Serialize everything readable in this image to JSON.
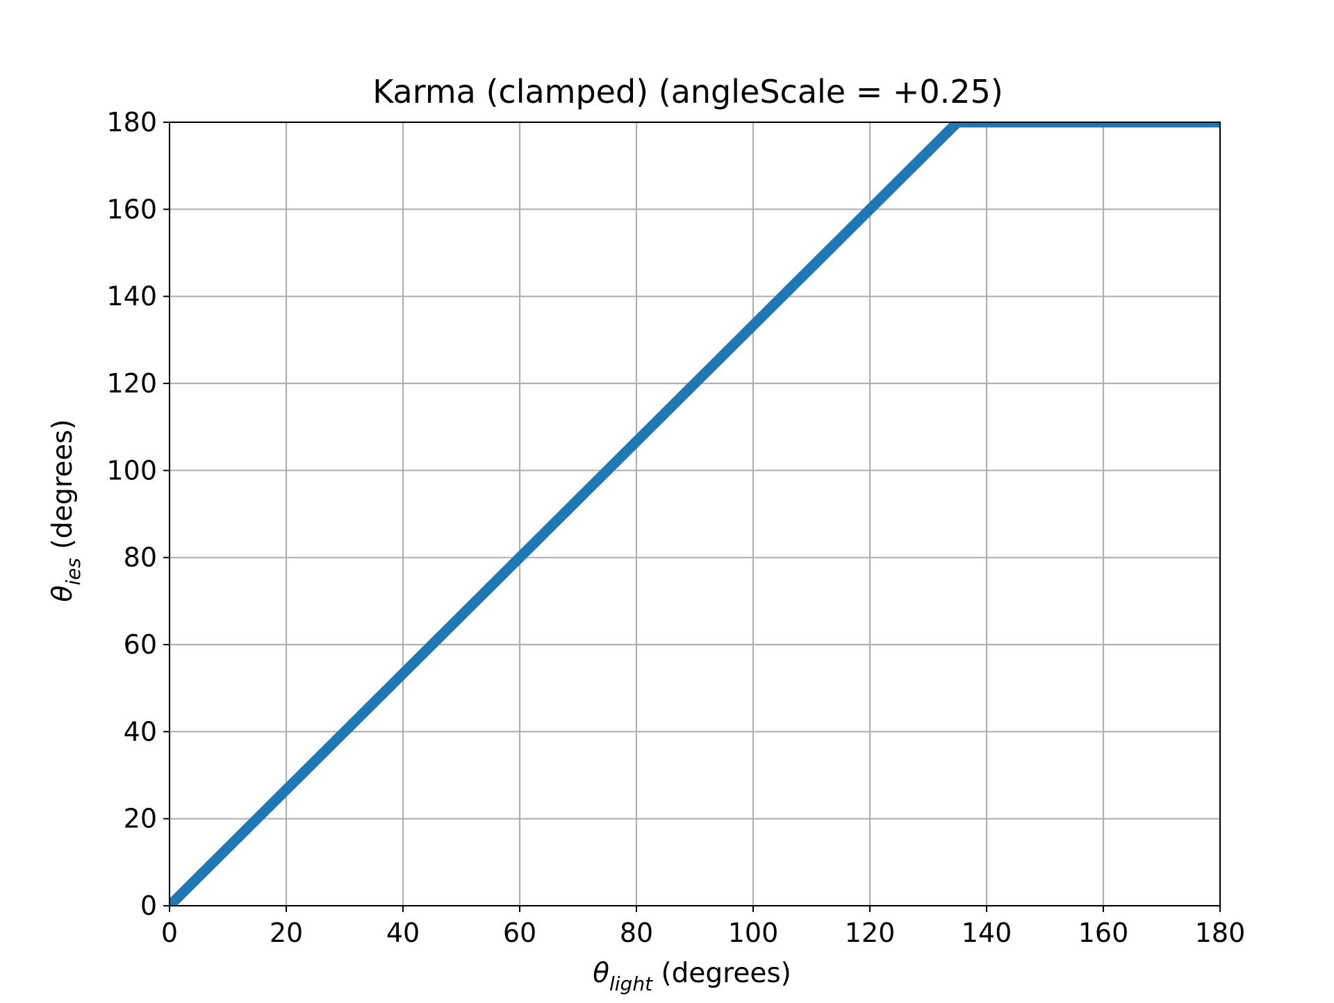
{
  "colors": {
    "series": "#1f77b4",
    "grid": "#b0b0b0",
    "axis": "#000000",
    "background": "#ffffff"
  },
  "chart_data": {
    "type": "line",
    "title": "Karma (clamped) (angleScale = +0.25)",
    "xlabel": {
      "symbol": "θ",
      "subscript": "light",
      "rest": " (degrees)"
    },
    "ylabel": {
      "symbol": "θ",
      "subscript": "ies",
      "rest": " (degrees)"
    },
    "xlim": [
      0,
      180
    ],
    "ylim": [
      0,
      180
    ],
    "xticks": [
      0,
      20,
      40,
      60,
      80,
      100,
      120,
      140,
      160,
      180
    ],
    "yticks": [
      0,
      20,
      40,
      60,
      80,
      100,
      120,
      140,
      160,
      180
    ],
    "xtick_labels": [
      "0",
      "20",
      "40",
      "60",
      "80",
      "100",
      "120",
      "140",
      "160",
      "180"
    ],
    "ytick_labels": [
      "0",
      "20",
      "40",
      "60",
      "80",
      "100",
      "120",
      "140",
      "160",
      "180"
    ],
    "grid": true,
    "legend": null,
    "series": [
      {
        "x": [
          0,
          135,
          180
        ],
        "y": [
          0,
          180,
          180
        ]
      }
    ]
  }
}
